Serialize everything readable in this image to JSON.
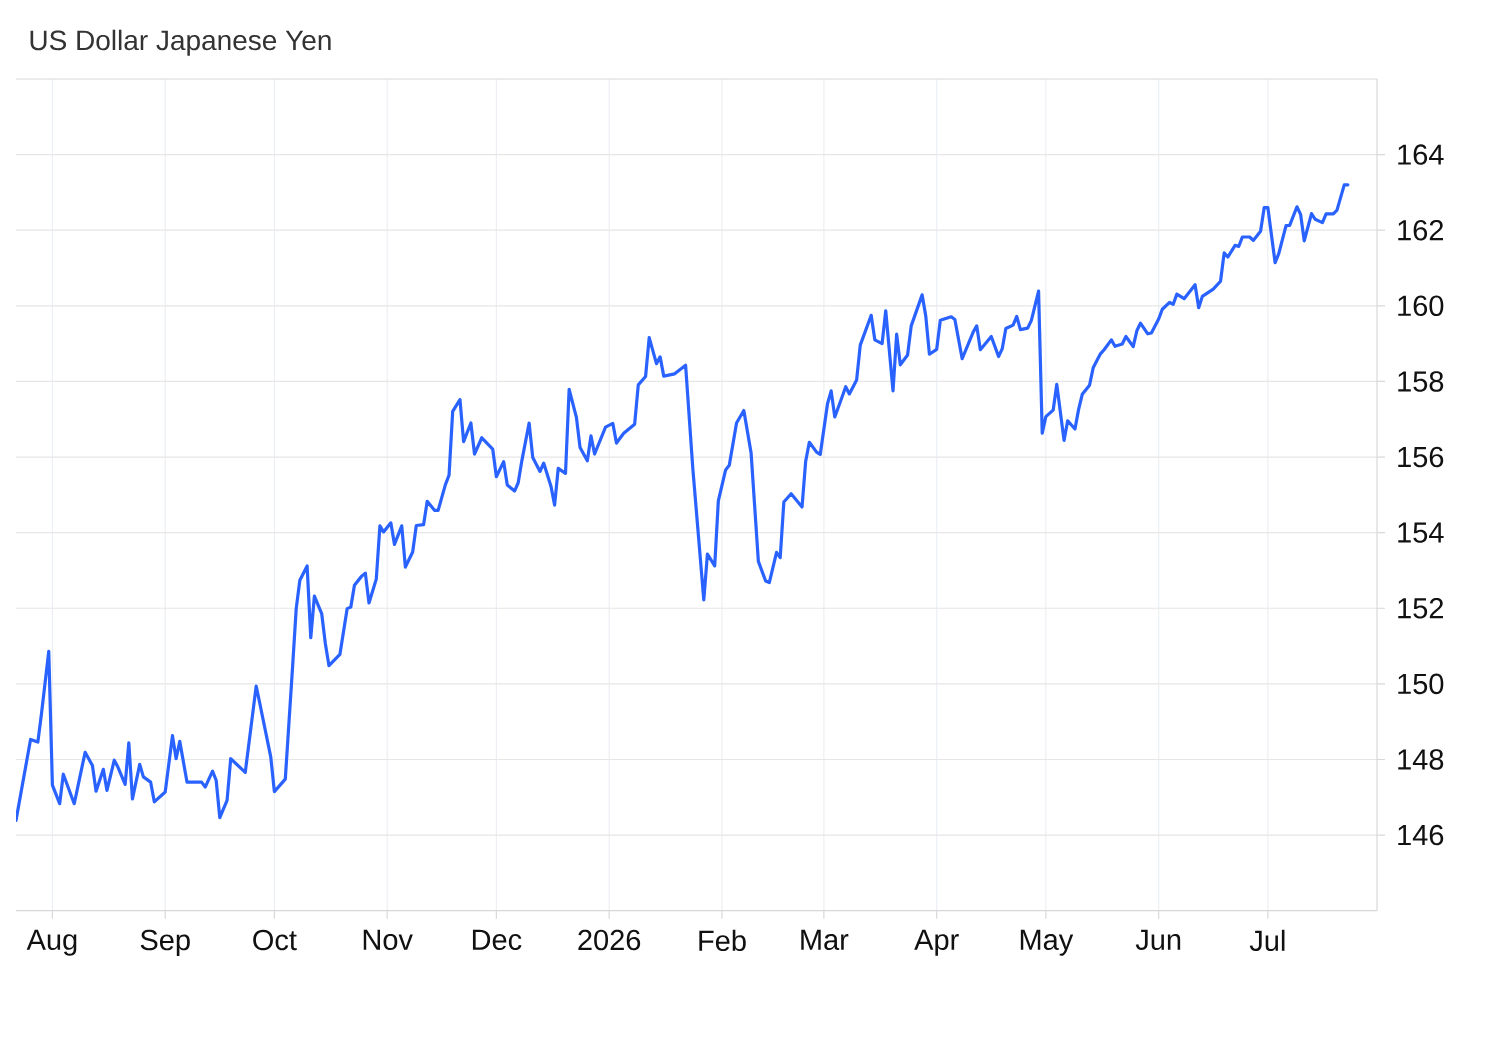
{
  "chart_data": {
    "type": "line",
    "title": "US Dollar Japanese Yen",
    "x": [
      "2025-07-22",
      "2025-07-26",
      "2025-07-28",
      "2025-07-29",
      "2025-07-31",
      "2025-08-01",
      "2025-08-03",
      "2025-08-04",
      "2025-08-07",
      "2025-08-09",
      "2025-08-10",
      "2025-08-12",
      "2025-08-13",
      "2025-08-15",
      "2025-08-16",
      "2025-08-18",
      "2025-08-19",
      "2025-08-21",
      "2025-08-22",
      "2025-08-23",
      "2025-08-25",
      "2025-08-26",
      "2025-08-28",
      "2025-08-29",
      "2025-09-01",
      "2025-09-03",
      "2025-09-04",
      "2025-09-05",
      "2025-09-07",
      "2025-09-11",
      "2025-09-12",
      "2025-09-14",
      "2025-09-15",
      "2025-09-16",
      "2025-09-18",
      "2025-09-19",
      "2025-09-23",
      "2025-09-26",
      "2025-09-27",
      "2025-09-30",
      "2025-10-01",
      "2025-10-04",
      "2025-10-06",
      "2025-10-07",
      "2025-10-08",
      "2025-10-10",
      "2025-10-11",
      "2025-10-12",
      "2025-10-14",
      "2025-10-15",
      "2025-10-16",
      "2025-10-19",
      "2025-10-21",
      "2025-10-22",
      "2025-10-23",
      "2025-10-25",
      "2025-10-26",
      "2025-10-27",
      "2025-10-29",
      "2025-10-30",
      "2025-10-31",
      "2025-11-02",
      "2025-11-03",
      "2025-11-05",
      "2025-11-06",
      "2025-11-08",
      "2025-11-09",
      "2025-11-11",
      "2025-11-12",
      "2025-11-14",
      "2025-11-15",
      "2025-11-17",
      "2025-11-18",
      "2025-11-19",
      "2025-11-21",
      "2025-11-22",
      "2025-11-24",
      "2025-11-25",
      "2025-11-27",
      "2025-11-30",
      "2025-12-01",
      "2025-12-03",
      "2025-12-04",
      "2025-12-06",
      "2025-12-07",
      "2025-12-08",
      "2025-12-10",
      "2025-12-11",
      "2025-12-13",
      "2025-12-14",
      "2025-12-16",
      "2025-12-17",
      "2025-12-18",
      "2025-12-20",
      "2025-12-21",
      "2025-12-23",
      "2025-12-24",
      "2025-12-26",
      "2025-12-27",
      "2025-12-28",
      "2025-12-31",
      "2026-01-02",
      "2026-01-03",
      "2026-01-05",
      "2026-01-08",
      "2026-01-09",
      "2026-01-11",
      "2026-01-12",
      "2026-01-14",
      "2026-01-15",
      "2026-01-16",
      "2026-01-19",
      "2026-01-22",
      "2026-01-24",
      "2026-01-27",
      "2026-01-28",
      "2026-01-30",
      "2026-01-31",
      "2026-02-02",
      "2026-02-03",
      "2026-02-05",
      "2026-02-07",
      "2026-02-09",
      "2026-02-11",
      "2026-02-13",
      "2026-02-14",
      "2026-02-16",
      "2026-02-17",
      "2026-02-18",
      "2026-02-20",
      "2026-02-23",
      "2026-02-24",
      "2026-02-25",
      "2026-02-27",
      "2026-02-28",
      "2026-03-02",
      "2026-03-03",
      "2026-03-04",
      "2026-03-06",
      "2026-03-07",
      "2026-03-08",
      "2026-03-10",
      "2026-03-11",
      "2026-03-14",
      "2026-03-15",
      "2026-03-17",
      "2026-03-18",
      "2026-03-20",
      "2026-03-21",
      "2026-03-22",
      "2026-03-24",
      "2026-03-25",
      "2026-03-28",
      "2026-03-29",
      "2026-03-30",
      "2026-04-01",
      "2026-04-02",
      "2026-04-05",
      "2026-04-06",
      "2026-04-08",
      "2026-04-11",
      "2026-04-12",
      "2026-04-13",
      "2026-04-16",
      "2026-04-18",
      "2026-04-19",
      "2026-04-20",
      "2026-04-22",
      "2026-04-23",
      "2026-04-24",
      "2026-04-26",
      "2026-04-27",
      "2026-04-29",
      "2026-04-30",
      "2026-05-01",
      "2026-05-03",
      "2026-05-04",
      "2026-05-06",
      "2026-05-07",
      "2026-05-09",
      "2026-05-10",
      "2026-05-11",
      "2026-05-13",
      "2026-05-14",
      "2026-05-16",
      "2026-05-17",
      "2026-05-19",
      "2026-05-20",
      "2026-05-22",
      "2026-05-23",
      "2026-05-25",
      "2026-05-26",
      "2026-05-27",
      "2026-05-29",
      "2026-05-30",
      "2026-06-01",
      "2026-06-02",
      "2026-06-04",
      "2026-06-05",
      "2026-06-06",
      "2026-06-08",
      "2026-06-11",
      "2026-06-12",
      "2026-06-13",
      "2026-06-16",
      "2026-06-18",
      "2026-06-19",
      "2026-06-20",
      "2026-06-22",
      "2026-06-23",
      "2026-06-24",
      "2026-06-26",
      "2026-06-27",
      "2026-06-29",
      "2026-06-30",
      "2026-07-01",
      "2026-07-03",
      "2026-07-04",
      "2026-07-06",
      "2026-07-07",
      "2026-07-09",
      "2026-07-10",
      "2026-07-11",
      "2026-07-13",
      "2026-07-14",
      "2026-07-16",
      "2026-07-17",
      "2026-07-19",
      "2026-07-20",
      "2026-07-22",
      "2026-07-23"
    ],
    "values": [
      146.39,
      148.53,
      148.46,
      149.21,
      150.86,
      147.32,
      146.83,
      147.61,
      146.83,
      147.74,
      148.19,
      147.84,
      147.16,
      147.74,
      147.18,
      147.98,
      147.8,
      147.34,
      148.44,
      146.96,
      147.87,
      147.54,
      147.4,
      146.88,
      147.14,
      148.63,
      148.02,
      148.48,
      147.4,
      147.4,
      147.27,
      147.69,
      147.45,
      146.46,
      146.92,
      148.02,
      147.66,
      149.94,
      149.48,
      148.07,
      147.15,
      147.48,
      150.45,
      151.99,
      152.74,
      153.12,
      151.22,
      152.32,
      151.86,
      151.07,
      150.48,
      150.78,
      151.99,
      152.03,
      152.61,
      152.85,
      152.93,
      152.14,
      152.77,
      154.18,
      154.02,
      154.26,
      153.69,
      154.18,
      153.09,
      153.49,
      154.19,
      154.21,
      154.83,
      154.59,
      154.59,
      155.27,
      155.52,
      157.21,
      157.52,
      156.41,
      156.9,
      156.08,
      156.51,
      156.21,
      155.48,
      155.88,
      155.26,
      155.1,
      155.32,
      155.9,
      156.9,
      155.99,
      155.62,
      155.84,
      155.23,
      154.73,
      155.7,
      155.57,
      157.79,
      157.05,
      156.25,
      155.9,
      156.56,
      156.08,
      156.79,
      156.89,
      156.37,
      156.63,
      156.87,
      157.91,
      158.13,
      159.16,
      158.47,
      158.65,
      158.14,
      158.2,
      158.43,
      155.68,
      152.22,
      153.43,
      153.12,
      154.84,
      155.66,
      155.78,
      156.9,
      157.23,
      156.11,
      153.24,
      152.72,
      152.68,
      153.48,
      153.34,
      154.81,
      155.03,
      154.68,
      155.89,
      156.39,
      156.13,
      156.07,
      157.41,
      157.75,
      157.06,
      157.59,
      157.86,
      157.67,
      158.04,
      158.96,
      159.75,
      159.1,
      159.0,
      159.87,
      157.75,
      159.25,
      158.44,
      158.7,
      159.47,
      160.29,
      159.73,
      158.72,
      158.85,
      159.62,
      159.71,
      159.64,
      158.6,
      159.3,
      159.47,
      158.84,
      159.19,
      158.66,
      158.86,
      159.4,
      159.49,
      159.72,
      159.37,
      159.41,
      159.61,
      160.39,
      156.63,
      157.07,
      157.24,
      157.92,
      156.44,
      156.96,
      156.74,
      157.26,
      157.66,
      157.9,
      158.36,
      158.73,
      158.84,
      159.1,
      158.93,
      158.99,
      159.19,
      158.92,
      159.34,
      159.54,
      159.26,
      159.28,
      159.65,
      159.91,
      160.09,
      160.04,
      160.31,
      160.19,
      160.56,
      159.95,
      160.25,
      160.44,
      160.65,
      161.4,
      161.29,
      161.6,
      161.57,
      161.82,
      161.82,
      161.73,
      161.97,
      162.6,
      162.6,
      161.14,
      161.38,
      162.12,
      162.13,
      162.62,
      162.42,
      161.72,
      162.44,
      162.29,
      162.2,
      162.43,
      162.43,
      162.53,
      163.2,
      163.2
    ],
    "color": "#2962ff",
    "xlim": [
      "2025-07-22",
      "2026-07-31"
    ],
    "ylim": [
      144,
      166
    ],
    "xticks": [
      {
        "value": "2025-08-01",
        "label": "Aug"
      },
      {
        "value": "2025-09-01",
        "label": "Sep"
      },
      {
        "value": "2025-10-01",
        "label": "Oct"
      },
      {
        "value": "2025-11-01",
        "label": "Nov"
      },
      {
        "value": "2025-12-01",
        "label": "Dec"
      },
      {
        "value": "2026-01-01",
        "label": "2026"
      },
      {
        "value": "2026-02-01",
        "label": "Feb"
      },
      {
        "value": "2026-03-01",
        "label": "Mar"
      },
      {
        "value": "2026-04-01",
        "label": "Apr"
      },
      {
        "value": "2026-05-01",
        "label": "May"
      },
      {
        "value": "2026-06-01",
        "label": "Jun"
      },
      {
        "value": "2026-07-01",
        "label": "Jul"
      }
    ],
    "yticks": [
      146,
      148,
      150,
      152,
      154,
      156,
      158,
      160,
      162,
      164
    ],
    "grid": true
  }
}
